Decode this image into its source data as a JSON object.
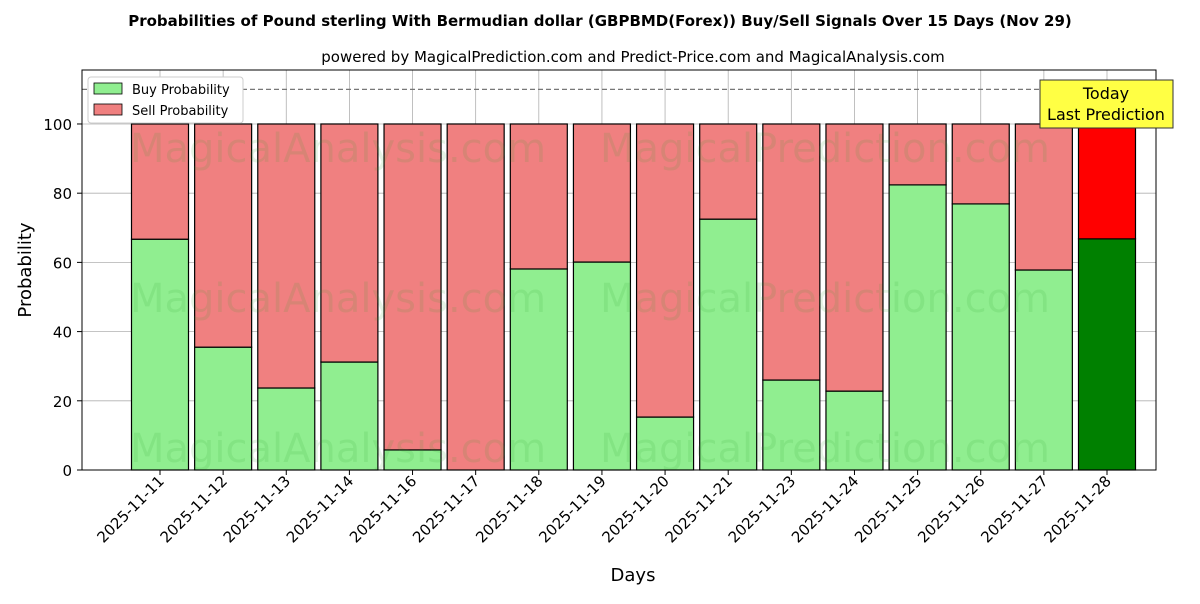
{
  "chart_data": {
    "type": "bar",
    "stacked": true,
    "title": "Probabilities of Pound sterling With Bermudian dollar (GBPBMD(Forex)) Buy/Sell Signals Over 15 Days (Nov 29)",
    "subtitle": "powered by MagicalPrediction.com and Predict-Price.com and MagicalAnalysis.com",
    "xlabel": "Days",
    "ylabel": "Probability",
    "ylim": [
      0,
      115.6
    ],
    "yticks": [
      0,
      20,
      40,
      60,
      80,
      100
    ],
    "grid": true,
    "legend_position": "top-left",
    "categories": [
      "2025-11-11",
      "2025-11-12",
      "2025-11-13",
      "2025-11-14",
      "2025-11-16",
      "2025-11-17",
      "2025-11-18",
      "2025-11-19",
      "2025-11-20",
      "2025-11-21",
      "2025-11-23",
      "2025-11-24",
      "2025-11-25",
      "2025-11-26",
      "2025-11-27",
      "2025-11-28"
    ],
    "series": [
      {
        "name": "Buy Probability",
        "color": "#90ee90",
        "values": [
          66.7,
          35.5,
          23.7,
          31.2,
          5.8,
          0,
          58.1,
          60.1,
          15.3,
          72.5,
          26.0,
          22.8,
          82.4,
          76.9,
          57.8,
          66.8
        ]
      },
      {
        "name": "Sell Probability",
        "color": "#f08080",
        "values": [
          33.3,
          64.5,
          76.3,
          68.8,
          94.2,
          100,
          41.9,
          39.9,
          84.7,
          27.5,
          74.0,
          77.2,
          17.6,
          23.1,
          42.2,
          33.2
        ]
      }
    ],
    "today_colors": {
      "buy": "#008000",
      "sell": "#ff0000"
    },
    "reference_line": 110,
    "annotation": [
      "Today",
      "Last Prediction"
    ],
    "watermark": [
      "MagicalAnalysis.com",
      "MagicalPrediction.com"
    ]
  }
}
